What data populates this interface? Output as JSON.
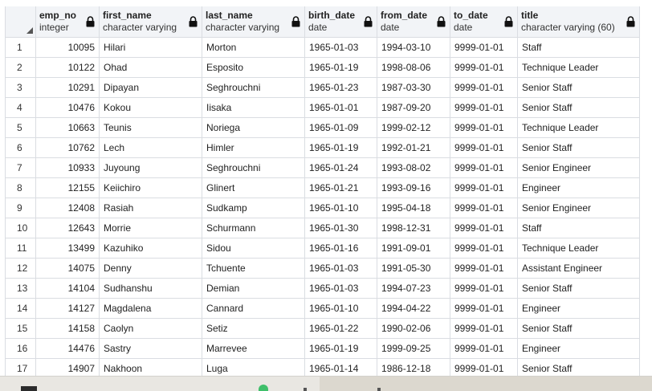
{
  "columns": [
    {
      "name": "emp_no",
      "type": "integer",
      "align": "num"
    },
    {
      "name": "first_name",
      "type": "character varying",
      "align": ""
    },
    {
      "name": "last_name",
      "type": "character varying",
      "align": ""
    },
    {
      "name": "birth_date",
      "type": "date",
      "align": ""
    },
    {
      "name": "from_date",
      "type": "date",
      "align": ""
    },
    {
      "name": "to_date",
      "type": "date",
      "align": ""
    },
    {
      "name": "title",
      "type": "character varying (60)",
      "align": ""
    }
  ],
  "rows": [
    [
      "1",
      "10095",
      "Hilari",
      "Morton",
      "1965-01-03",
      "1994-03-10",
      "9999-01-01",
      "Staff"
    ],
    [
      "2",
      "10122",
      "Ohad",
      "Esposito",
      "1965-01-19",
      "1998-08-06",
      "9999-01-01",
      "Technique Leader"
    ],
    [
      "3",
      "10291",
      "Dipayan",
      "Seghrouchni",
      "1965-01-23",
      "1987-03-30",
      "9999-01-01",
      "Senior Staff"
    ],
    [
      "4",
      "10476",
      "Kokou",
      "Iisaka",
      "1965-01-01",
      "1987-09-20",
      "9999-01-01",
      "Senior Staff"
    ],
    [
      "5",
      "10663",
      "Teunis",
      "Noriega",
      "1965-01-09",
      "1999-02-12",
      "9999-01-01",
      "Technique Leader"
    ],
    [
      "6",
      "10762",
      "Lech",
      "Himler",
      "1965-01-19",
      "1992-01-21",
      "9999-01-01",
      "Senior Staff"
    ],
    [
      "7",
      "10933",
      "Juyoung",
      "Seghrouchni",
      "1965-01-24",
      "1993-08-02",
      "9999-01-01",
      "Senior Engineer"
    ],
    [
      "8",
      "12155",
      "Keiichiro",
      "Glinert",
      "1965-01-21",
      "1993-09-16",
      "9999-01-01",
      "Engineer"
    ],
    [
      "9",
      "12408",
      "Rasiah",
      "Sudkamp",
      "1965-01-10",
      "1995-04-18",
      "9999-01-01",
      "Senior Engineer"
    ],
    [
      "10",
      "12643",
      "Morrie",
      "Schurmann",
      "1965-01-30",
      "1998-12-31",
      "9999-01-01",
      "Staff"
    ],
    [
      "11",
      "13499",
      "Kazuhiko",
      "Sidou",
      "1965-01-16",
      "1991-09-01",
      "9999-01-01",
      "Technique Leader"
    ],
    [
      "12",
      "14075",
      "Denny",
      "Tchuente",
      "1965-01-03",
      "1991-05-30",
      "9999-01-01",
      "Assistant Engineer"
    ],
    [
      "13",
      "14104",
      "Sudhanshu",
      "Demian",
      "1965-01-03",
      "1994-07-23",
      "9999-01-01",
      "Senior Staff"
    ],
    [
      "14",
      "14127",
      "Magdalena",
      "Cannard",
      "1965-01-10",
      "1994-04-22",
      "9999-01-01",
      "Engineer"
    ],
    [
      "15",
      "14158",
      "Caolyn",
      "Setiz",
      "1965-01-22",
      "1990-02-06",
      "9999-01-01",
      "Senior Staff"
    ],
    [
      "16",
      "14476",
      "Sastry",
      "Marrevee",
      "1965-01-19",
      "1999-09-25",
      "9999-01-01",
      "Engineer"
    ],
    [
      "17",
      "14907",
      "Nakhoon",
      "Luga",
      "1965-01-14",
      "1986-12-18",
      "9999-01-01",
      "Senior Staff"
    ]
  ],
  "icons": {
    "column_lock": "lock-icon",
    "corner": "select-all-triangle-icon"
  },
  "colors": {
    "header_bg": "#f2f4f7",
    "grid_line": "#dadde2"
  }
}
